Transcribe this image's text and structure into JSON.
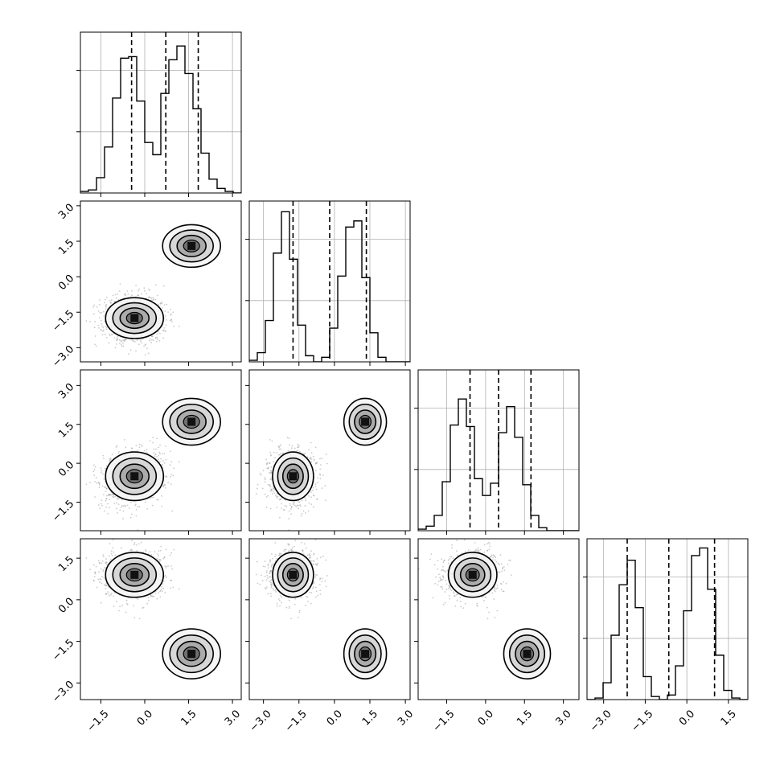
{
  "chart_data": {
    "type": "corner",
    "title": "",
    "n_params": 4,
    "colors": {
      "line": "#000000",
      "grid": "#b0b0b0",
      "density": "#000000",
      "points": "#8a8a8a"
    },
    "axes": [
      {
        "range": [
          -2.2,
          3.3
        ],
        "ticks": [
          -1.5,
          0.0,
          1.5,
          3.0
        ],
        "tick_labels": [
          "−1.5",
          "0.0",
          "1.5",
          "3.0"
        ]
      },
      {
        "range": [
          -3.6,
          3.2
        ],
        "ticks": [
          -3.0,
          -1.5,
          0.0,
          1.5,
          3.0
        ],
        "tick_labels": [
          "−3.0",
          "−1.5",
          "0.0",
          "1.5",
          "3.0"
        ]
      },
      {
        "range": [
          -2.6,
          3.6
        ],
        "ticks": [
          -1.5,
          0.0,
          1.5,
          3.0
        ],
        "tick_labels": [
          "−1.5",
          "0.0",
          "1.5",
          "3.0"
        ]
      },
      {
        "range": [
          -3.6,
          2.2
        ],
        "ticks": [
          -3.0,
          -1.5,
          0.0,
          1.5
        ],
        "tick_labels": [
          "−3.0",
          "−1.5",
          "0.0",
          "1.5"
        ]
      }
    ],
    "quantiles": [
      [
        -0.45,
        0.72,
        1.83
      ],
      [
        -1.75,
        -0.2,
        1.35
      ],
      [
        -0.6,
        0.5,
        1.75
      ],
      [
        -2.15,
        -0.65,
        1.0
      ]
    ],
    "histograms": [
      {
        "bins": 20,
        "edges_range": [
          -2.2,
          3.3
        ],
        "counts": [
          0.01,
          0.02,
          0.1,
          0.3,
          0.62,
          0.88,
          0.89,
          0.6,
          0.33,
          0.25,
          0.65,
          0.87,
          0.96,
          0.78,
          0.55,
          0.26,
          0.09,
          0.03,
          0.01,
          0.0
        ]
      },
      {
        "bins": 20,
        "edges_range": [
          -3.6,
          3.2
        ],
        "counts": [
          0.01,
          0.06,
          0.27,
          0.71,
          0.98,
          0.67,
          0.24,
          0.04,
          0.0,
          0.03,
          0.22,
          0.56,
          0.88,
          0.92,
          0.55,
          0.19,
          0.03,
          0.0,
          0.0,
          0.0
        ]
      },
      {
        "bins": 20,
        "edges_range": [
          -2.6,
          3.6
        ],
        "counts": [
          0.01,
          0.03,
          0.1,
          0.32,
          0.69,
          0.86,
          0.68,
          0.34,
          0.23,
          0.31,
          0.64,
          0.81,
          0.61,
          0.3,
          0.1,
          0.02,
          0.0,
          0.0,
          0.0,
          0.0
        ]
      },
      {
        "bins": 20,
        "edges_range": [
          -3.6,
          2.2
        ],
        "counts": [
          0.0,
          0.01,
          0.11,
          0.42,
          0.75,
          0.91,
          0.6,
          0.15,
          0.02,
          0.0,
          0.03,
          0.22,
          0.58,
          0.94,
          0.99,
          0.72,
          0.29,
          0.06,
          0.01,
          0.0
        ]
      }
    ],
    "modes": [
      {
        "centers": [
          -0.35,
          -1.75,
          -0.5,
          0.9
        ],
        "sigmas": [
          0.55,
          0.48,
          0.52,
          0.45
        ]
      },
      {
        "centers": [
          1.6,
          1.3,
          1.6,
          -1.95
        ],
        "sigmas": [
          0.55,
          0.5,
          0.5,
          0.5
        ]
      }
    ]
  }
}
